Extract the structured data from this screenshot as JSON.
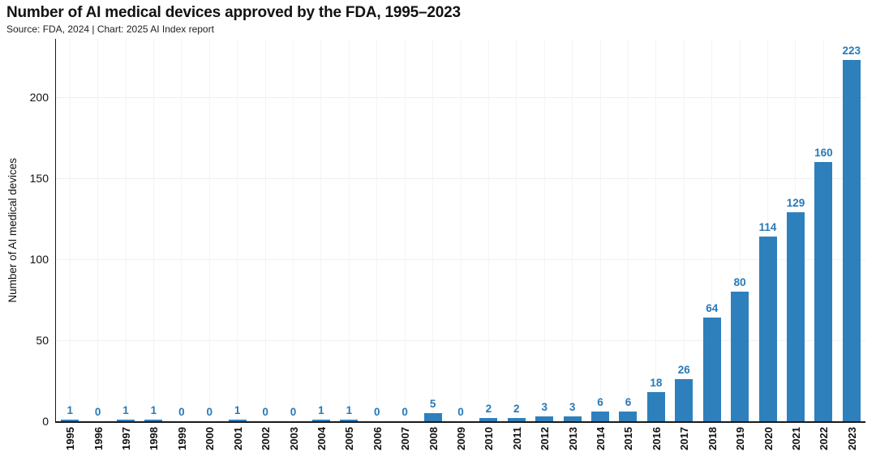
{
  "header": {
    "title": "Number of AI medical devices approved by the FDA, 1995–2023",
    "subtitle": "Source: FDA, 2024 | Chart: 2025 AI Index report"
  },
  "chart_data": {
    "type": "bar",
    "title": "Number of AI medical devices approved by the FDA, 1995–2023",
    "subtitle": "Source: FDA, 2024 | Chart: 2025 AI Index report",
    "categories": [
      "1995",
      "1996",
      "1997",
      "1998",
      "1999",
      "2000",
      "2001",
      "2002",
      "2003",
      "2004",
      "2005",
      "2006",
      "2007",
      "2008",
      "2009",
      "2010",
      "2011",
      "2012",
      "2013",
      "2014",
      "2015",
      "2016",
      "2017",
      "2018",
      "2019",
      "2020",
      "2021",
      "2022",
      "2023"
    ],
    "values": [
      1,
      0,
      1,
      1,
      0,
      0,
      1,
      0,
      0,
      1,
      1,
      0,
      0,
      5,
      0,
      2,
      2,
      3,
      3,
      6,
      6,
      18,
      26,
      64,
      80,
      114,
      129,
      160,
      223
    ],
    "xlabel": "",
    "ylabel": "Number of AI medical devices",
    "ylim": [
      0,
      236
    ],
    "yticks": [
      0,
      50,
      100,
      150,
      200
    ],
    "grid": true,
    "legend": "none",
    "value_labels_shown": true,
    "colors": {
      "bar": "#2e80bc",
      "value_label": "#2779b7",
      "axis": "#1a1a1a",
      "tick_label": "#111111",
      "gridline": "#efefef"
    }
  }
}
